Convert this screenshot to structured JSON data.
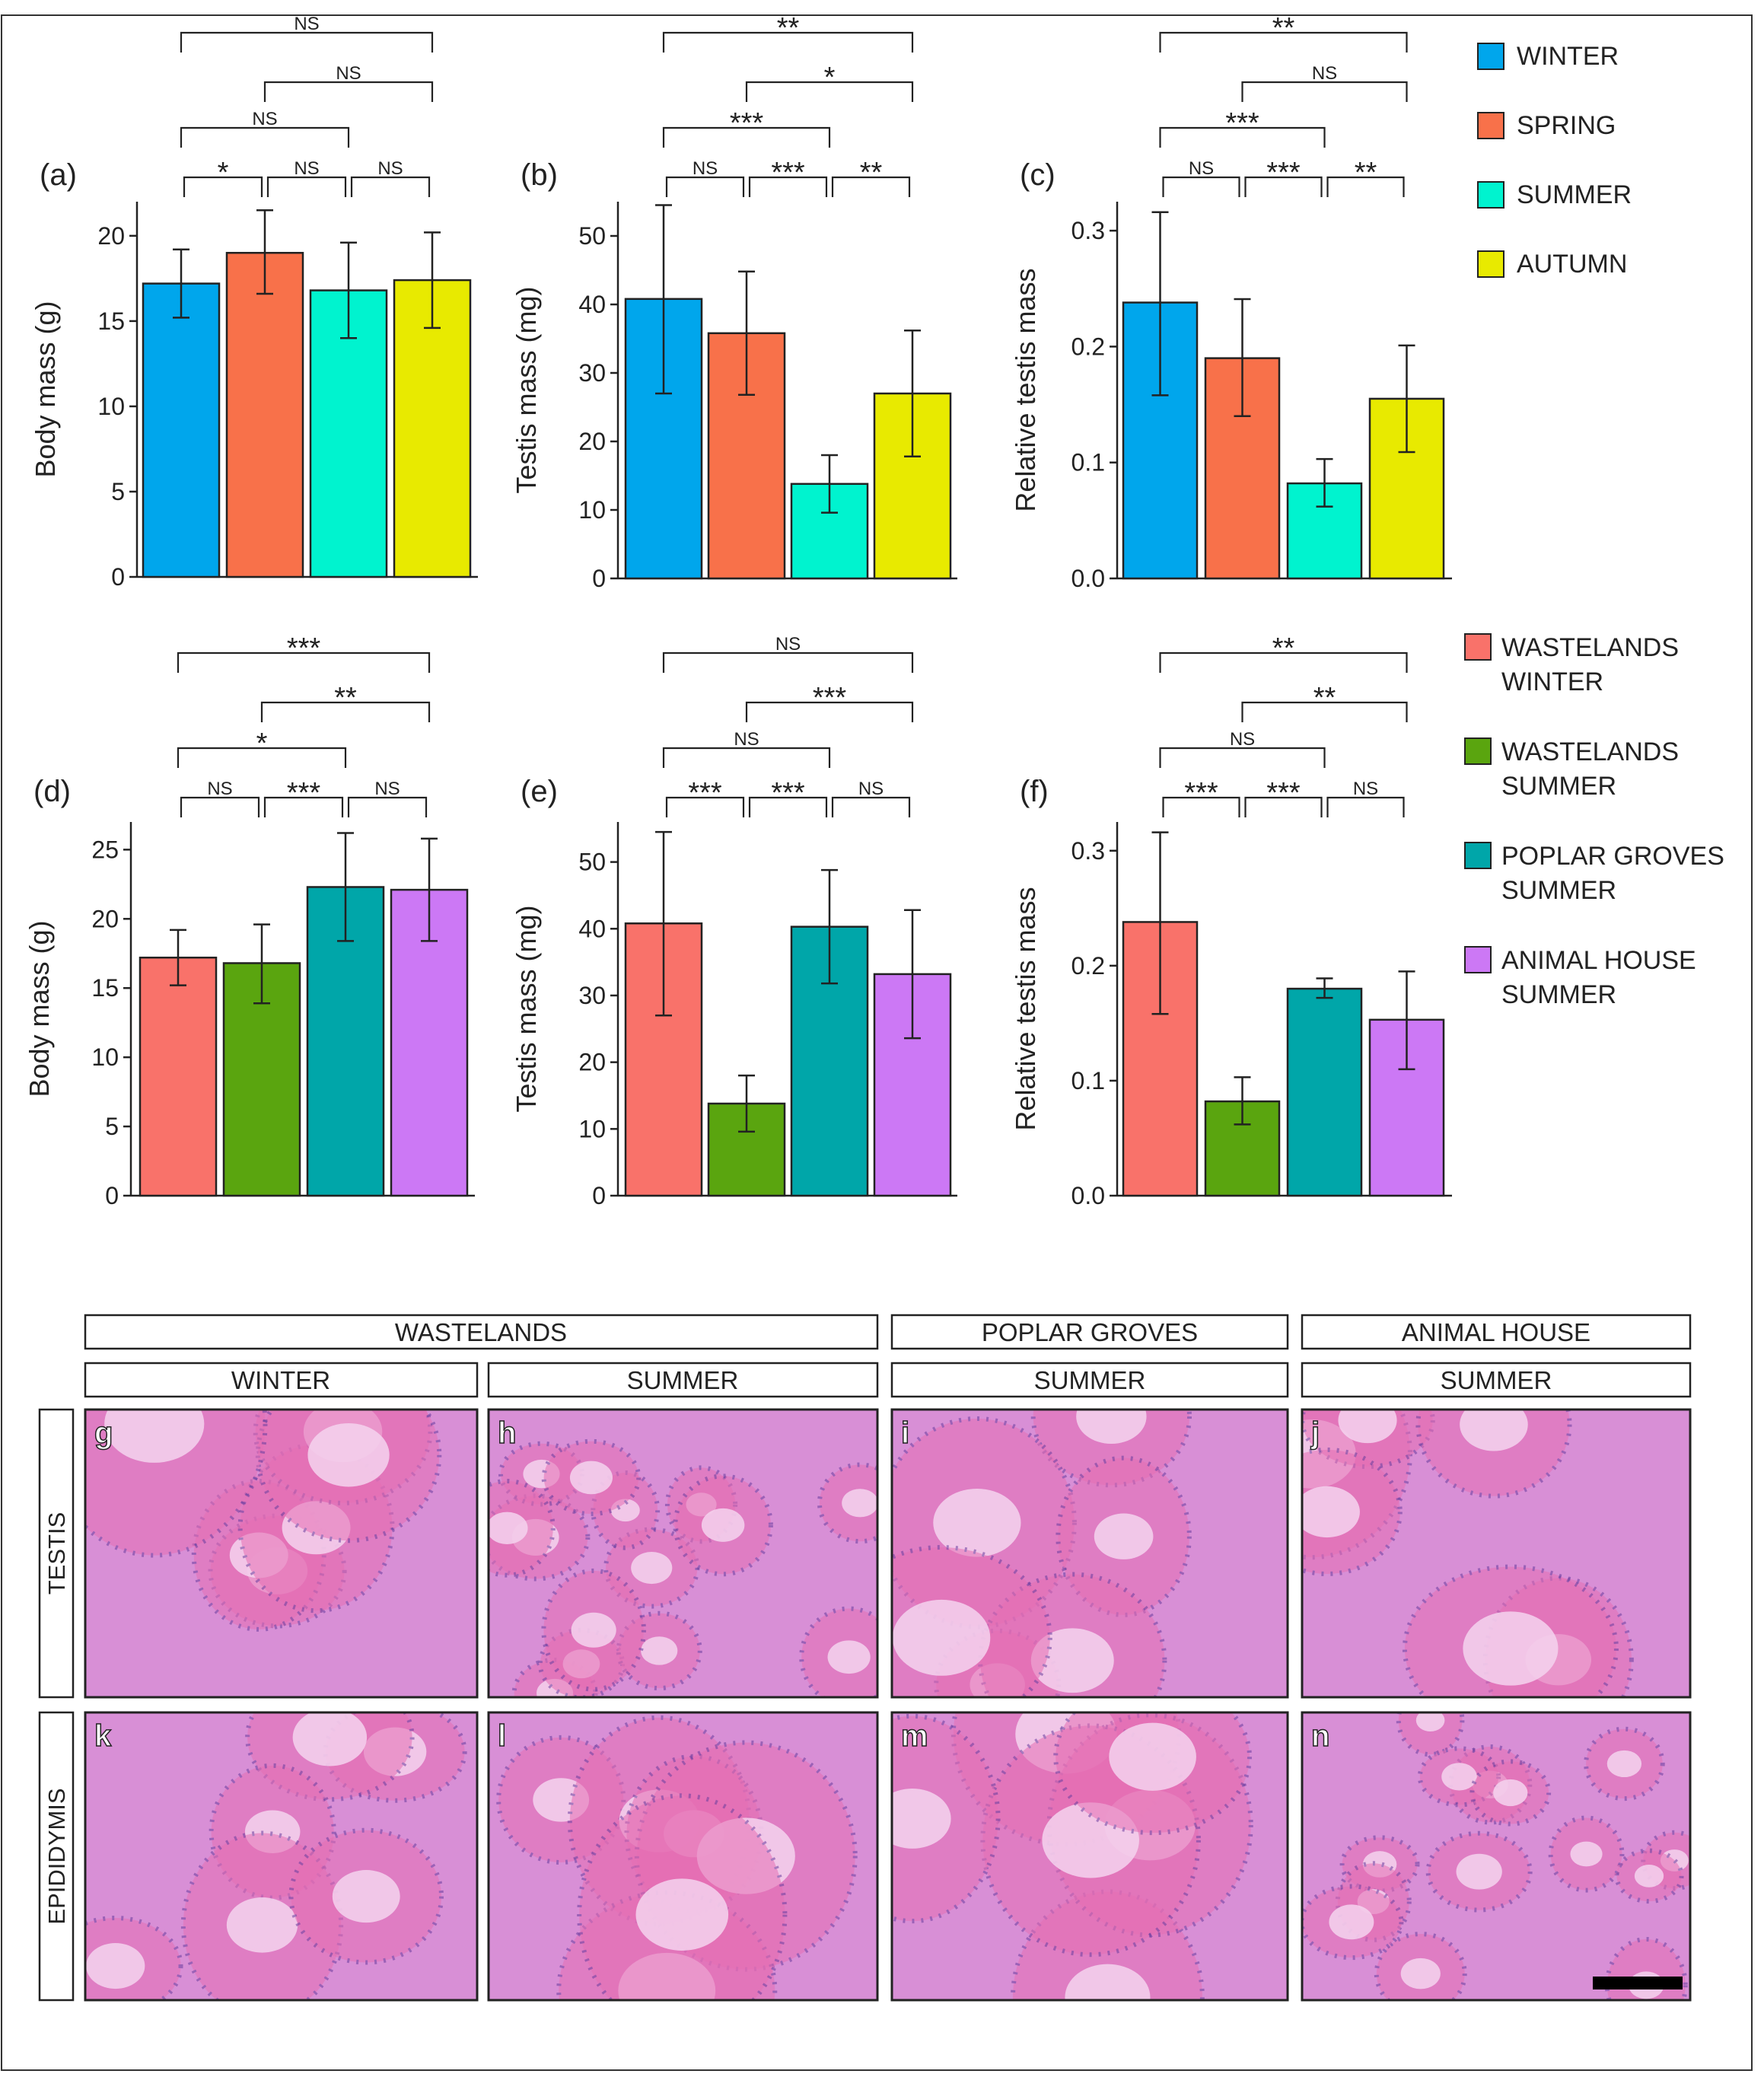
{
  "legend_seasons": {
    "items": [
      {
        "label": "WINTER",
        "color": "#00a6ec"
      },
      {
        "label": "SPRING",
        "color": "#f8714a"
      },
      {
        "label": "SUMMER",
        "color": "#00f3cf"
      },
      {
        "label": "AUTUMN",
        "color": "#e8ea00"
      }
    ]
  },
  "legend_habitats": {
    "items": [
      {
        "line1": "WASTELANDS",
        "line2": "WINTER",
        "color": "#f9726a"
      },
      {
        "line1": "WASTELANDS",
        "line2": "SUMMER",
        "color": "#5aa50f"
      },
      {
        "line1": "POPLAR GROVES",
        "line2": "SUMMER",
        "color": "#00a6a9"
      },
      {
        "line1": "ANIMAL HOUSE",
        "line2": "SUMMER",
        "color": "#cc78f5"
      }
    ]
  },
  "chart_data": [
    {
      "panel": "(a)",
      "type": "bar",
      "ylabel": "Body mass (g)",
      "ylim": [
        0,
        22
      ],
      "yticks": [
        "0",
        "5",
        "10",
        "15",
        "20"
      ],
      "ytick_values": [
        0,
        5,
        10,
        15,
        20
      ],
      "categories": [
        "WINTER",
        "SPRING",
        "SUMMER",
        "AUTUMN"
      ],
      "values": [
        17.2,
        19.0,
        16.8,
        17.4
      ],
      "err_low": [
        15.2,
        16.6,
        14.0,
        14.6
      ],
      "err_high": [
        19.2,
        21.5,
        19.6,
        20.2
      ],
      "colors": [
        "#00a6ec",
        "#f8714a",
        "#00f3cf",
        "#e8ea00"
      ],
      "comparisons": [
        {
          "from": 0,
          "to": 1,
          "label": "*",
          "level": 0
        },
        {
          "from": 1,
          "to": 2,
          "label": "NS",
          "level": 0
        },
        {
          "from": 2,
          "to": 3,
          "label": "NS",
          "level": 0
        },
        {
          "from": 0,
          "to": 2,
          "label": "NS",
          "level": 1
        },
        {
          "from": 1,
          "to": 3,
          "label": "NS",
          "level": 2
        },
        {
          "from": 0,
          "to": 3,
          "label": "NS",
          "level": 3
        }
      ]
    },
    {
      "panel": "(b)",
      "type": "bar",
      "ylabel": "Testis mass (mg)",
      "ylim": [
        0,
        55
      ],
      "yticks": [
        "0",
        "10",
        "20",
        "30",
        "40",
        "50"
      ],
      "ytick_values": [
        0,
        10,
        20,
        30,
        40,
        50
      ],
      "categories": [
        "WINTER",
        "SPRING",
        "SUMMER",
        "AUTUMN"
      ],
      "values": [
        40.8,
        35.8,
        13.8,
        27.0
      ],
      "err_low": [
        27.0,
        26.8,
        9.6,
        17.8
      ],
      "err_high": [
        54.5,
        44.8,
        18.0,
        36.2
      ],
      "colors": [
        "#00a6ec",
        "#f8714a",
        "#00f3cf",
        "#e8ea00"
      ],
      "comparisons": [
        {
          "from": 0,
          "to": 1,
          "label": "NS",
          "level": 0
        },
        {
          "from": 1,
          "to": 2,
          "label": "***",
          "level": 0
        },
        {
          "from": 2,
          "to": 3,
          "label": "**",
          "level": 0
        },
        {
          "from": 0,
          "to": 2,
          "label": "***",
          "level": 1
        },
        {
          "from": 1,
          "to": 3,
          "label": "*",
          "level": 2
        },
        {
          "from": 0,
          "to": 3,
          "label": "**",
          "level": 3
        }
      ]
    },
    {
      "panel": "(c)",
      "type": "bar",
      "ylabel": "Relative testis mass",
      "ylim": [
        0,
        0.325
      ],
      "yticks": [
        "0.0",
        "0.1",
        "0.2",
        "0.3"
      ],
      "ytick_values": [
        0,
        0.1,
        0.2,
        0.3
      ],
      "categories": [
        "WINTER",
        "SPRING",
        "SUMMER",
        "AUTUMN"
      ],
      "values": [
        0.238,
        0.19,
        0.082,
        0.155
      ],
      "err_low": [
        0.158,
        0.14,
        0.062,
        0.109
      ],
      "err_high": [
        0.316,
        0.241,
        0.103,
        0.201
      ],
      "colors": [
        "#00a6ec",
        "#f8714a",
        "#00f3cf",
        "#e8ea00"
      ],
      "comparisons": [
        {
          "from": 0,
          "to": 1,
          "label": "NS",
          "level": 0
        },
        {
          "from": 1,
          "to": 2,
          "label": "***",
          "level": 0
        },
        {
          "from": 2,
          "to": 3,
          "label": "**",
          "level": 0
        },
        {
          "from": 0,
          "to": 2,
          "label": "***",
          "level": 1
        },
        {
          "from": 1,
          "to": 3,
          "label": "NS",
          "level": 2
        },
        {
          "from": 0,
          "to": 3,
          "label": "**",
          "level": 3
        }
      ]
    },
    {
      "panel": "(d)",
      "type": "bar",
      "ylabel": "Body mass (g)",
      "ylim": [
        0,
        27
      ],
      "yticks": [
        "0",
        "5",
        "10",
        "15",
        "20",
        "25"
      ],
      "ytick_values": [
        0,
        5,
        10,
        15,
        20,
        25
      ],
      "categories": [
        "WASTELANDS WINTER",
        "WASTELANDS SUMMER",
        "POPLAR GROVES SUMMER",
        "ANIMAL HOUSE SUMMER"
      ],
      "values": [
        17.2,
        16.8,
        22.3,
        22.1
      ],
      "err_low": [
        15.2,
        13.9,
        18.4,
        18.4
      ],
      "err_high": [
        19.2,
        19.6,
        26.2,
        25.8
      ],
      "colors": [
        "#f9726a",
        "#5aa50f",
        "#00a6a9",
        "#cc78f5"
      ],
      "comparisons": [
        {
          "from": 0,
          "to": 1,
          "label": "NS",
          "level": 0
        },
        {
          "from": 1,
          "to": 2,
          "label": "***",
          "level": 0
        },
        {
          "from": 2,
          "to": 3,
          "label": "NS",
          "level": 0
        },
        {
          "from": 0,
          "to": 2,
          "label": "*",
          "level": 1
        },
        {
          "from": 1,
          "to": 3,
          "label": "**",
          "level": 2
        },
        {
          "from": 0,
          "to": 3,
          "label": "***",
          "level": 3
        }
      ]
    },
    {
      "panel": "(e)",
      "type": "bar",
      "ylabel": "Testis mass (mg)",
      "ylim": [
        0,
        56
      ],
      "yticks": [
        "0",
        "10",
        "20",
        "30",
        "40",
        "50"
      ],
      "ytick_values": [
        0,
        10,
        20,
        30,
        40,
        50
      ],
      "categories": [
        "WASTELANDS WINTER",
        "WASTELANDS SUMMER",
        "POPLAR GROVES SUMMER",
        "ANIMAL HOUSE SUMMER"
      ],
      "values": [
        40.8,
        13.8,
        40.3,
        33.2
      ],
      "err_low": [
        27.0,
        9.6,
        31.8,
        23.6
      ],
      "err_high": [
        54.5,
        18.0,
        48.8,
        42.8
      ],
      "colors": [
        "#f9726a",
        "#5aa50f",
        "#00a6a9",
        "#cc78f5"
      ],
      "comparisons": [
        {
          "from": 0,
          "to": 1,
          "label": "***",
          "level": 0
        },
        {
          "from": 1,
          "to": 2,
          "label": "***",
          "level": 0
        },
        {
          "from": 2,
          "to": 3,
          "label": "NS",
          "level": 0
        },
        {
          "from": 0,
          "to": 2,
          "label": "NS",
          "level": 1
        },
        {
          "from": 1,
          "to": 3,
          "label": "***",
          "level": 2
        },
        {
          "from": 0,
          "to": 3,
          "label": "NS",
          "level": 3
        }
      ]
    },
    {
      "panel": "(f)",
      "type": "bar",
      "ylabel": "Relative testis mass",
      "ylim": [
        0,
        0.325
      ],
      "yticks": [
        "0.0",
        "0.1",
        "0.2",
        "0.3"
      ],
      "ytick_values": [
        0,
        0.1,
        0.2,
        0.3
      ],
      "categories": [
        "WASTELANDS WINTER",
        "WASTELANDS SUMMER",
        "POPLAR GROVES SUMMER",
        "ANIMAL HOUSE SUMMER"
      ],
      "values": [
        0.238,
        0.082,
        0.18,
        0.153
      ],
      "err_low": [
        0.158,
        0.062,
        0.172,
        0.11
      ],
      "err_high": [
        0.316,
        0.103,
        0.189,
        0.195
      ],
      "colors": [
        "#f9726a",
        "#5aa50f",
        "#00a6a9",
        "#cc78f5"
      ],
      "comparisons": [
        {
          "from": 0,
          "to": 1,
          "label": "***",
          "level": 0
        },
        {
          "from": 1,
          "to": 2,
          "label": "***",
          "level": 0
        },
        {
          "from": 2,
          "to": 3,
          "label": "NS",
          "level": 0
        },
        {
          "from": 0,
          "to": 2,
          "label": "NS",
          "level": 1
        },
        {
          "from": 1,
          "to": 3,
          "label": "**",
          "level": 2
        },
        {
          "from": 0,
          "to": 3,
          "label": "**",
          "level": 3
        }
      ]
    }
  ],
  "histology": {
    "group_headers": [
      "WASTELANDS",
      "POPLAR GROVES",
      "ANIMAL HOUSE"
    ],
    "season_headers": [
      "WINTER",
      "SUMMER",
      "SUMMER",
      "SUMMER"
    ],
    "row_labels": [
      "TESTIS",
      "EPIDIDYMIS"
    ],
    "panel_letters": [
      [
        "g",
        "h",
        "i",
        "j"
      ],
      [
        "k",
        "l",
        "m",
        "n"
      ]
    ],
    "tissue_bg": "#d88fd6",
    "tissue_light": "#f4d4ef",
    "nucleus": "#6a3d9e",
    "stroma": "#e66fb4"
  }
}
